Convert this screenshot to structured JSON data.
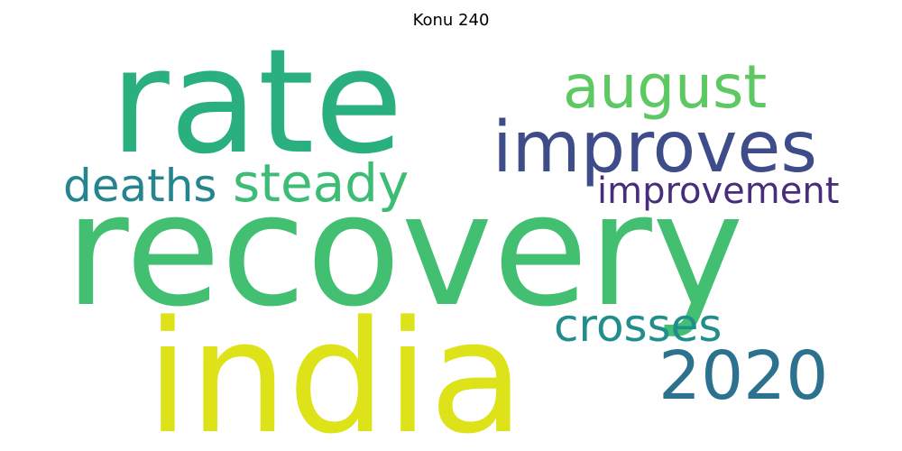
{
  "title": "Konu 240",
  "words": [
    {
      "text": "recovery",
      "color": "#43bf71"
    },
    {
      "text": "rate",
      "color": "#2ab07f"
    },
    {
      "text": "india",
      "color": "#dde318"
    },
    {
      "text": "improves",
      "color": "#3e4c8a"
    },
    {
      "text": "august",
      "color": "#5ec962"
    },
    {
      "text": "2020",
      "color": "#2c728e"
    },
    {
      "text": "steady",
      "color": "#3cbc75"
    },
    {
      "text": "deaths",
      "color": "#25858e"
    },
    {
      "text": "crosses",
      "color": "#228d8d"
    },
    {
      "text": "improvement",
      "color": "#472d7b"
    }
  ]
}
